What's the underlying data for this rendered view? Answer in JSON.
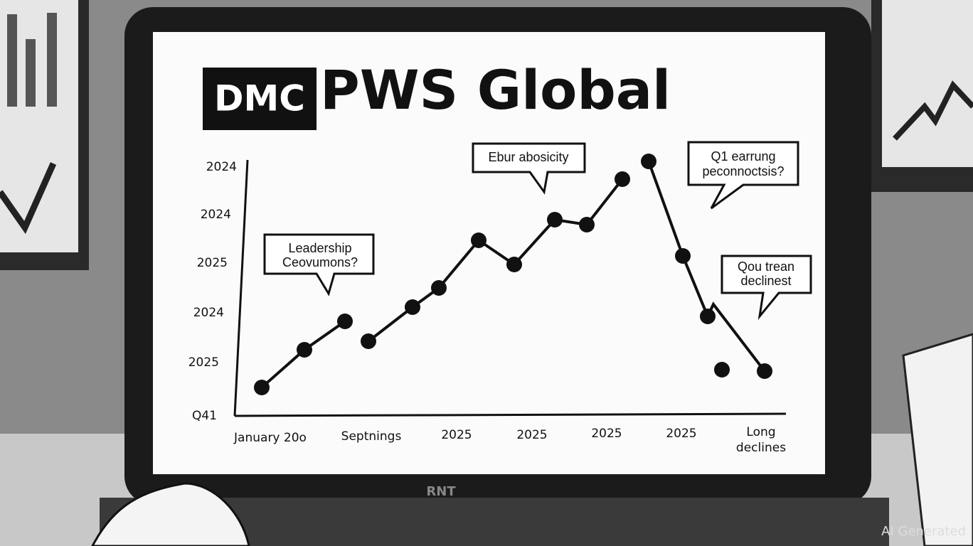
{
  "screen": {
    "logo": "DMC",
    "title": "PWS Global",
    "y_labels": [
      "2024",
      "2024",
      "2025",
      "2024",
      "2025",
      "Q41"
    ],
    "x_labels": [
      "January 20o",
      "Septnings",
      "2025",
      "2025",
      "2025",
      "2025"
    ],
    "x_last": [
      "Long",
      "declines"
    ],
    "callouts": [
      {
        "lines": [
          "Leadership",
          "Ceovumons?"
        ]
      },
      {
        "lines": [
          "Ebur abosicity"
        ]
      },
      {
        "lines": [
          "Q1 earrung",
          "peconnoctsis?"
        ]
      },
      {
        "lines": [
          "Qou trean",
          "declinest"
        ]
      }
    ]
  },
  "laptop": {
    "brand": "RNT"
  },
  "watermark": "AI Generated"
}
